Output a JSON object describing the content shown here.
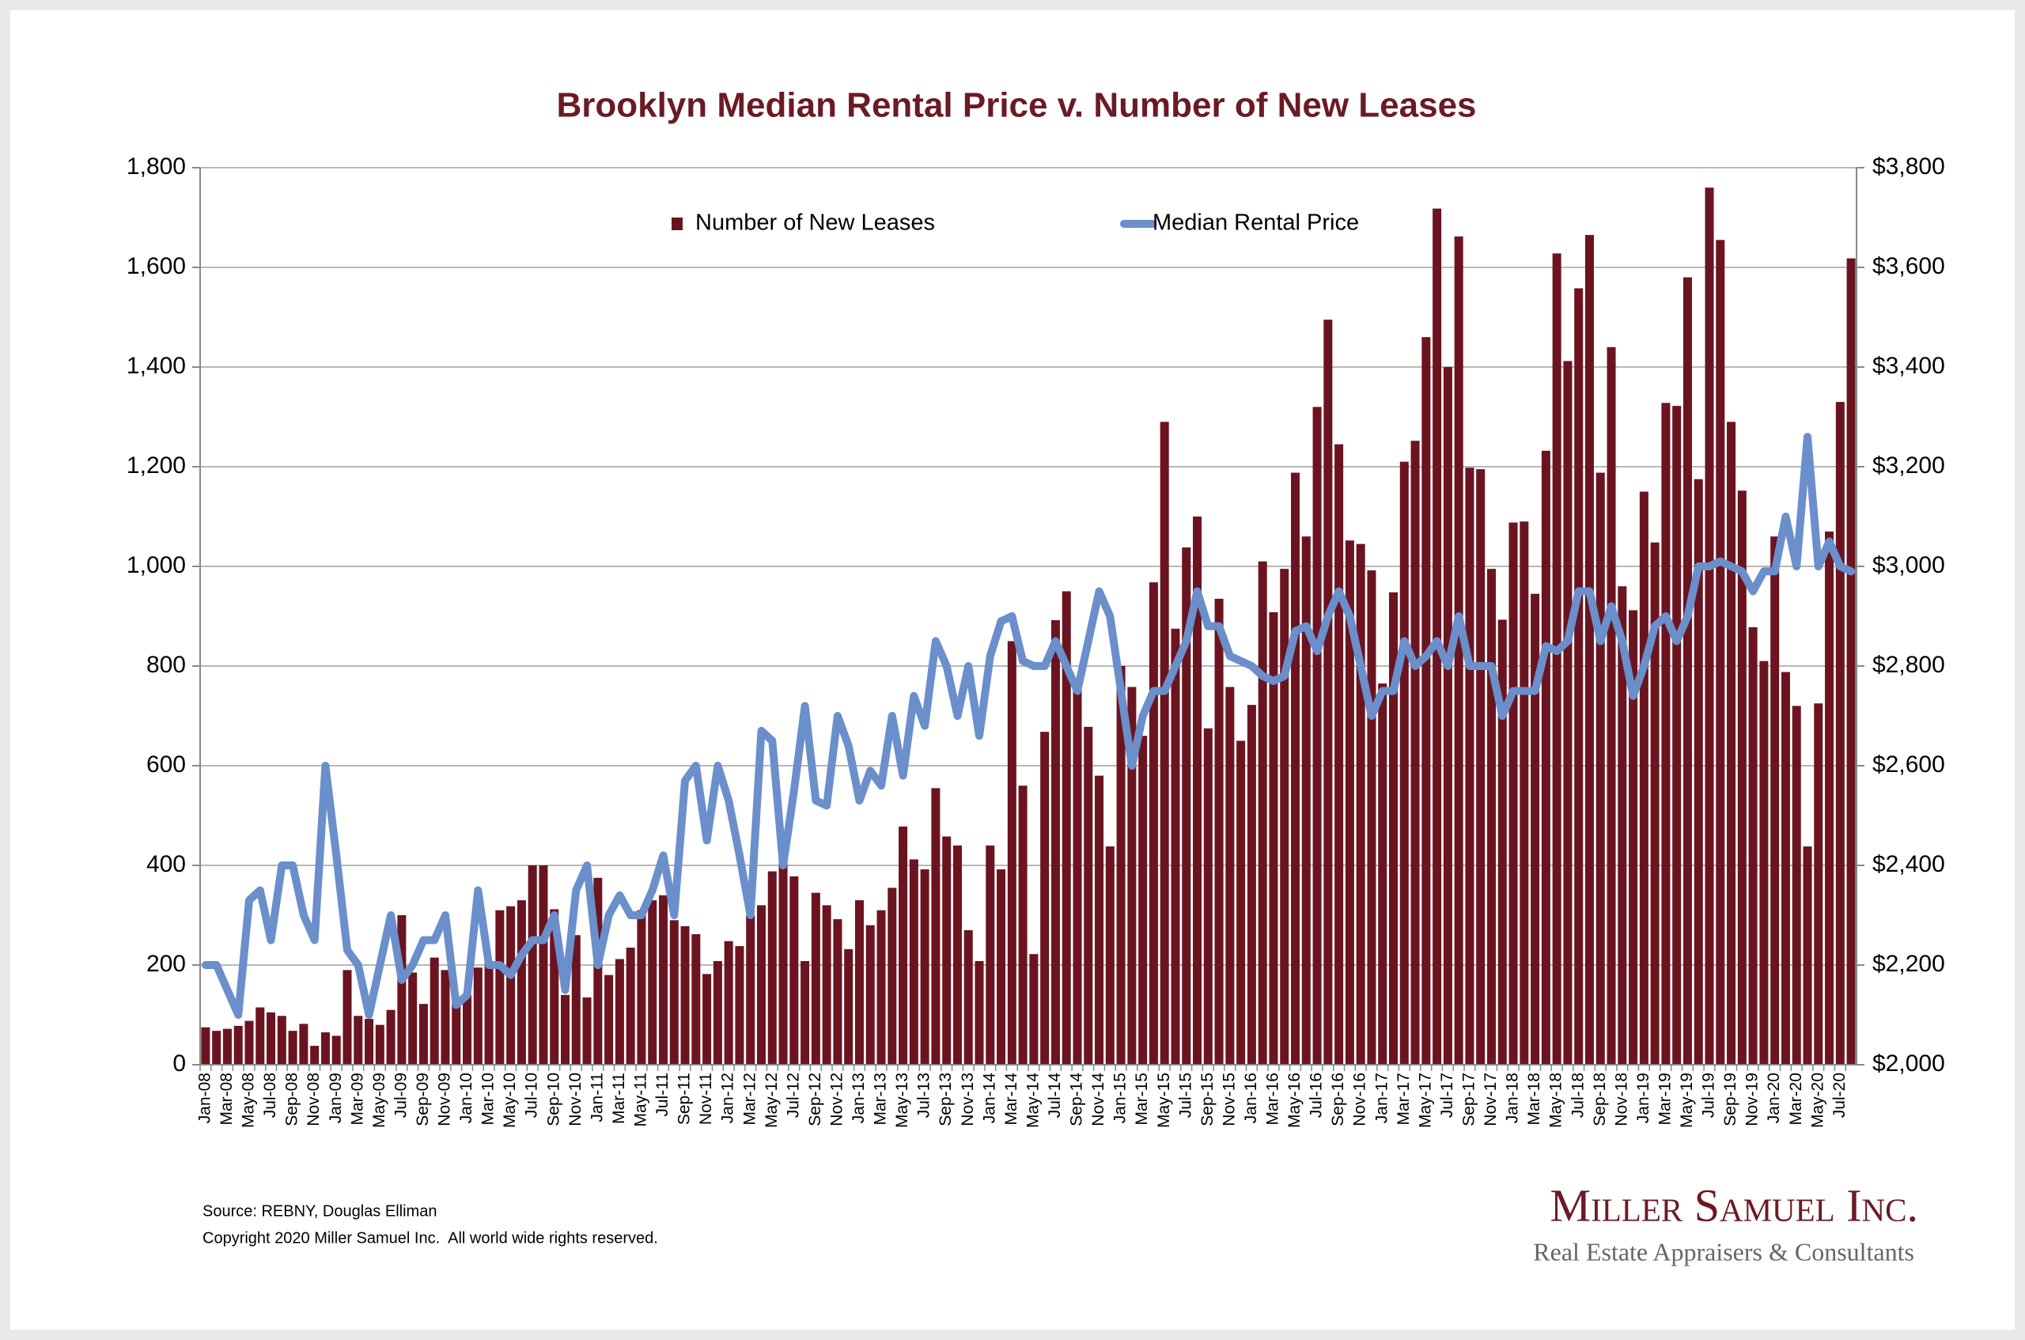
{
  "chart_data": {
    "type": "bar_line",
    "title": "Brooklyn Median Rental Price v. Number of New Leases",
    "categories": [
      "Jan-08",
      null,
      "Mar-08",
      null,
      "May-08",
      null,
      "Jul-08",
      null,
      "Sep-08",
      null,
      "Nov-08",
      null,
      "Jan-09",
      null,
      "Mar-09",
      null,
      "May-09",
      null,
      "Jul-09",
      null,
      "Sep-09",
      null,
      "Nov-09",
      null,
      "Jan-10",
      null,
      "Mar-10",
      null,
      "May-10",
      null,
      "Jul-10",
      null,
      "Sep-10",
      null,
      "Nov-10",
      null,
      "Jan-11",
      null,
      "Mar-11",
      null,
      "May-11",
      null,
      "Jul-11",
      null,
      "Sep-11",
      null,
      "Nov-11",
      null,
      "Jan-12",
      null,
      "Mar-12",
      null,
      "May-12",
      null,
      "Jul-12",
      null,
      "Sep-12",
      null,
      "Nov-12",
      null,
      "Jan-13",
      null,
      "Mar-13",
      null,
      "May-13",
      null,
      "Jul-13",
      null,
      "Sep-13",
      null,
      "Nov-13",
      null,
      "Jan-14",
      null,
      "Mar-14",
      null,
      "May-14",
      null,
      "Jul-14",
      null,
      "Sep-14",
      null,
      "Nov-14",
      null,
      "Jan-15",
      null,
      "Mar-15",
      null,
      "May-15",
      null,
      "Jul-15",
      null,
      "Sep-15",
      null,
      "Nov-15",
      null,
      "Jan-16",
      null,
      "Mar-16",
      null,
      "May-16",
      null,
      "Jul-16",
      null,
      "Sep-16",
      null,
      "Nov-16",
      null,
      "Jan-17",
      null,
      "Mar-17",
      null,
      "May-17",
      null,
      "Jul-17",
      null,
      "Sep-17",
      null,
      "Nov-17",
      null,
      "Jan-18",
      null,
      "Mar-18",
      null,
      "May-18",
      null,
      "Jul-18",
      null,
      "Sep-18",
      null,
      "Nov-18",
      null,
      "Jan-19",
      null,
      "Mar-19",
      null,
      "May-19",
      null,
      "Jul-19",
      null,
      "Sep-19",
      null,
      "Nov-19",
      null,
      "Jan-20",
      null,
      "Mar-20",
      null,
      "May-20",
      null,
      "Jul-20",
      null
    ],
    "series": [
      {
        "name": "Number of New Leases",
        "type": "bar",
        "color": "#6b1420",
        "values": [
          75,
          68,
          72,
          78,
          88,
          115,
          105,
          98,
          68,
          82,
          38,
          65,
          58,
          190,
          98,
          92,
          80,
          110,
          300,
          185,
          122,
          215,
          190,
          125,
          140,
          195,
          205,
          310,
          318,
          330,
          400,
          400,
          312,
          140,
          260,
          135,
          375,
          180,
          212,
          235,
          310,
          330,
          340,
          290,
          278,
          262,
          182,
          208,
          248,
          238,
          300,
          320,
          388,
          415,
          378,
          208,
          345,
          320,
          292,
          232,
          330,
          280,
          310,
          355,
          478,
          412,
          392,
          555,
          458,
          440,
          270,
          208,
          440,
          392,
          850,
          560,
          222,
          668,
          892,
          950,
          760,
          678,
          580,
          438,
          800,
          758,
          660,
          968,
          1290,
          875,
          1038,
          1100,
          675,
          935,
          758,
          650,
          722,
          1010,
          908,
          995,
          1188,
          1060,
          1320,
          1495,
          1245,
          1052,
          1045,
          992,
          765,
          948,
          1210,
          1252,
          1460,
          1718,
          1400,
          1662,
          1198,
          1195,
          995,
          893,
          1088,
          1090,
          945,
          1232,
          1628,
          1412,
          1558,
          1665,
          1188,
          1440,
          960,
          912,
          1150,
          1048,
          1328,
          1322,
          1580,
          1175,
          1760,
          1655,
          1290,
          1152,
          878,
          810,
          1060,
          788,
          720,
          438,
          725,
          1070,
          1330,
          1618
        ]
      },
      {
        "name": "Median Rental Price",
        "type": "line",
        "axis": "y2",
        "color": "#6a8fcb",
        "values": [
          2200,
          2200,
          2150,
          2100,
          2330,
          2350,
          2250,
          2400,
          2400,
          2300,
          2250,
          2600,
          2420,
          2230,
          2200,
          2100,
          2200,
          2300,
          2170,
          2200,
          2250,
          2250,
          2300,
          2120,
          2140,
          2350,
          2200,
          2200,
          2180,
          2220,
          2250,
          2250,
          2300,
          2150,
          2350,
          2400,
          2200,
          2300,
          2340,
          2300,
          2300,
          2350,
          2420,
          2300,
          2570,
          2600,
          2450,
          2600,
          2530,
          2420,
          2300,
          2670,
          2650,
          2400,
          2550,
          2720,
          2530,
          2520,
          2700,
          2640,
          2530,
          2590,
          2560,
          2700,
          2580,
          2740,
          2680,
          2850,
          2800,
          2700,
          2800,
          2660,
          2820,
          2890,
          2900,
          2810,
          2800,
          2800,
          2850,
          2800,
          2750,
          2850,
          2950,
          2900,
          2750,
          2600,
          2700,
          2750,
          2750,
          2800,
          2850,
          2950,
          2880,
          2880,
          2820,
          2810,
          2800,
          2780,
          2770,
          2780,
          2870,
          2880,
          2830,
          2900,
          2950,
          2900,
          2800,
          2700,
          2750,
          2750,
          2850,
          2800,
          2820,
          2850,
          2800,
          2900,
          2800,
          2800,
          2800,
          2700,
          2750,
          2750,
          2750,
          2840,
          2830,
          2850,
          2950,
          2950,
          2850,
          2920,
          2850,
          2740,
          2800,
          2880,
          2900,
          2850,
          2900,
          3000,
          3000,
          3010,
          3000,
          2990,
          2950,
          2990,
          2990,
          3100,
          3000,
          3260,
          3000,
          3050,
          3000,
          2990
        ]
      }
    ],
    "ylim": [
      0,
      1800
    ],
    "yticks": [
      0,
      200,
      400,
      600,
      800,
      {
        "value": 1000,
        "label": "1,000"
      },
      {
        "value": 1200,
        "label": "1,200"
      },
      {
        "value": 1400,
        "label": "1,400"
      },
      {
        "value": 1600,
        "label": "1,600"
      },
      {
        "value": 1800,
        "label": "1,800"
      }
    ],
    "y2lim": [
      2000,
      3800
    ],
    "y2ticks": [
      {
        "value": 2000,
        "label": "$2,000"
      },
      {
        "value": 2200,
        "label": "$2,200"
      },
      {
        "value": 2400,
        "label": "$2,400"
      },
      {
        "value": 2600,
        "label": "$2,600"
      },
      {
        "value": 2800,
        "label": "$2,800"
      },
      {
        "value": 3000,
        "label": "$3,000"
      },
      {
        "value": 3200,
        "label": "$3,200"
      },
      {
        "value": 3400,
        "label": "$3,400"
      },
      {
        "value": 3600,
        "label": "$3,600"
      },
      {
        "value": 3800,
        "label": "$3,800"
      }
    ],
    "grid": true,
    "legend": "top",
    "source": "Source: REBNY, Douglas Elliman",
    "copyright": "Copyright 2020 Miller Samuel Inc.  All world wide rights reserved.",
    "logo": {
      "name": "Miller Samuel Inc.",
      "tagline": "Real Estate Appraisers & Consultants"
    }
  }
}
